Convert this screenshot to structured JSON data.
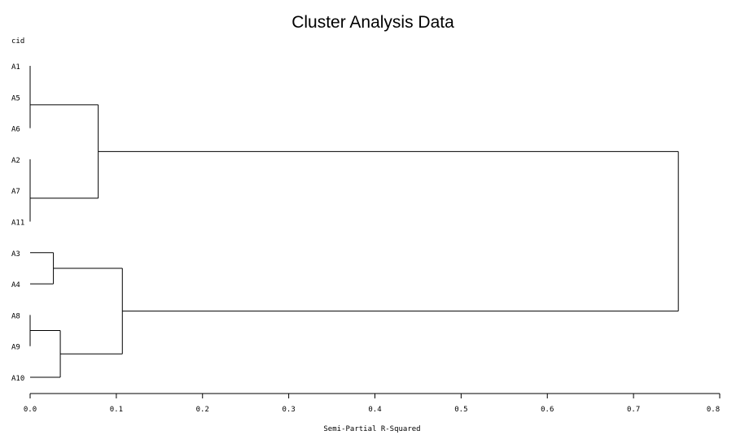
{
  "chart_data": {
    "type": "dendrogram",
    "title": "Cluster Analysis Data",
    "ylabel": "cid",
    "xlabel": "Semi-Partial R-Squared",
    "xlim": [
      0.0,
      0.8
    ],
    "x_ticks": [
      "0.0",
      "0.1",
      "0.2",
      "0.3",
      "0.4",
      "0.5",
      "0.6",
      "0.7",
      "0.8"
    ],
    "tick_values": [
      0.0,
      0.1,
      0.2,
      0.3,
      0.4,
      0.5,
      0.6,
      0.7,
      0.8
    ],
    "grid": false,
    "leaves": [
      "A1",
      "A5",
      "A6",
      "A2",
      "A7",
      "A11",
      "A3",
      "A4",
      "A8",
      "A9",
      "A10"
    ],
    "merges": [
      {
        "id": "c1",
        "left": "A1",
        "right": "A5",
        "height": 0.0
      },
      {
        "id": "c2",
        "left": "c1",
        "right": "A6",
        "height": 0.0
      },
      {
        "id": "c3",
        "left": "A2",
        "right": "A7",
        "height": 0.0
      },
      {
        "id": "c4",
        "left": "c3",
        "right": "A11",
        "height": 0.0
      },
      {
        "id": "c5",
        "left": "A8",
        "right": "A9",
        "height": 0.0
      },
      {
        "id": "c6",
        "left": "A3",
        "right": "A4",
        "height": 0.027
      },
      {
        "id": "c7",
        "left": "c5",
        "right": "A10",
        "height": 0.035
      },
      {
        "id": "c8",
        "left": "c2",
        "right": "c4",
        "height": 0.079
      },
      {
        "id": "c9",
        "left": "c6",
        "right": "c7",
        "height": 0.107
      },
      {
        "id": "c10",
        "left": "c8",
        "right": "c9",
        "height": 0.752
      }
    ]
  }
}
